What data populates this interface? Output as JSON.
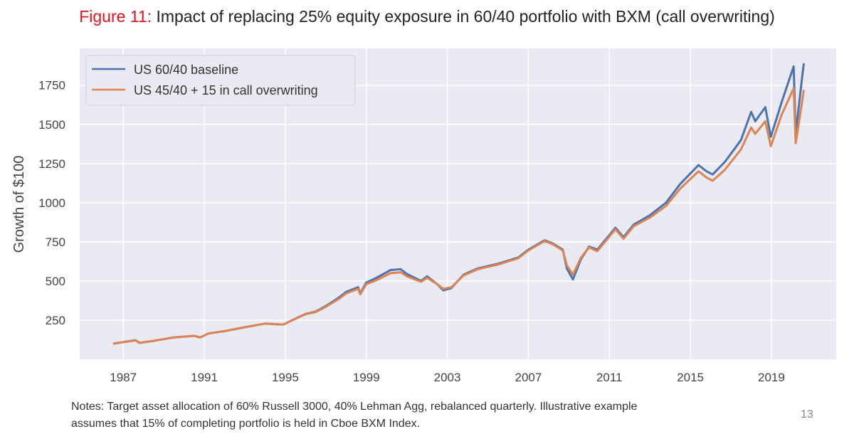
{
  "title": {
    "prefix": "Figure 11:",
    "text": "Impact of replacing 25% equity exposure in 60/40 portfolio with BXM (call overwriting)"
  },
  "notes": [
    "Notes: Target asset allocation of 60% Russell 3000, 40% Lehman Agg, rebalanced quarterly. Illustrative example",
    "assumes that 15%  of completing portfolio is held in Cboe BXM Index."
  ],
  "page_number": "13",
  "chart_data": {
    "type": "line",
    "title": "",
    "xlabel": "",
    "ylabel": "Growth of $100",
    "xlim": [
      1984.85,
      2022.2
    ],
    "ylim": [
      0,
      1985
    ],
    "grid": true,
    "legend": "top-left",
    "x_ticks": [
      "1987",
      "1991",
      "1995",
      "1999",
      "2003",
      "2007",
      "2011",
      "2015",
      "2019"
    ],
    "y_ticks": [
      "250",
      "500",
      "750",
      "1000",
      "1250",
      "1500",
      "1750"
    ],
    "x": [
      1986.5,
      1987.6,
      1987.8,
      1988.5,
      1989.5,
      1990.5,
      1990.8,
      1991.2,
      1992,
      1993,
      1994,
      1994.9,
      1995.5,
      1996,
      1996.5,
      1997,
      1997.6,
      1998,
      1998.6,
      1998.7,
      1999,
      1999.5,
      2000.2,
      2000.7,
      2001,
      2001.7,
      2002,
      2002.5,
      2002.8,
      2003.2,
      2003.8,
      2004.5,
      2005.5,
      2006.5,
      2007,
      2007.8,
      2008.2,
      2008.7,
      2008.9,
      2009.2,
      2009.6,
      2010,
      2010.4,
      2011.3,
      2011.7,
      2012.2,
      2013,
      2013.8,
      2014.5,
      2015.4,
      2015.8,
      2016.1,
      2016.7,
      2017.5,
      2018,
      2018.2,
      2018.7,
      2018.97,
      2019.5,
      2020.1,
      2020.2,
      2020.5,
      2020.6
    ],
    "series": [
      {
        "name": "US 60/40 baseline",
        "color": "#4c72b0",
        "values": [
          100,
          122,
          105,
          118,
          140,
          150,
          140,
          165,
          180,
          205,
          228,
          222,
          260,
          290,
          305,
          340,
          390,
          430,
          460,
          420,
          490,
          520,
          570,
          575,
          545,
          500,
          530,
          480,
          440,
          455,
          540,
          580,
          610,
          650,
          700,
          760,
          740,
          700,
          580,
          510,
          640,
          720,
          700,
          840,
          780,
          860,
          920,
          1000,
          1120,
          1240,
          1200,
          1180,
          1260,
          1400,
          1580,
          1520,
          1610,
          1420,
          1640,
          1870,
          1440,
          1780,
          1890
        ]
      },
      {
        "name": "US 45/40 + 15 in call overwriting",
        "color": "#dd8452",
        "values": [
          100,
          121,
          105,
          118,
          140,
          150,
          140,
          165,
          180,
          205,
          228,
          222,
          258,
          288,
          302,
          335,
          382,
          420,
          450,
          415,
          480,
          505,
          550,
          555,
          530,
          495,
          520,
          480,
          450,
          460,
          535,
          575,
          605,
          645,
          695,
          755,
          735,
          695,
          600,
          540,
          650,
          715,
          690,
          830,
          770,
          850,
          905,
          980,
          1090,
          1200,
          1160,
          1140,
          1210,
          1340,
          1480,
          1440,
          1520,
          1360,
          1560,
          1730,
          1380,
          1630,
          1720
        ]
      }
    ]
  }
}
